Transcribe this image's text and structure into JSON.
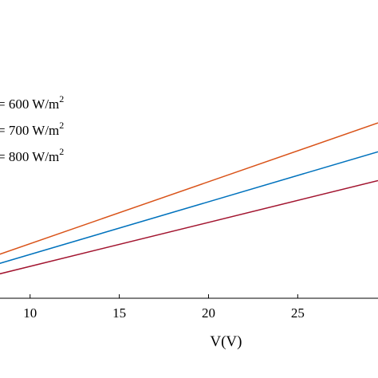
{
  "chart_data": {
    "type": "line",
    "xlabel": "V(V)",
    "ylabel": "",
    "xlim": [
      8.0,
      29.5
    ],
    "ylim": [
      0.0,
      6.0
    ],
    "x_ticks": [
      10,
      15,
      20,
      25
    ],
    "grid": false,
    "legend": {
      "placement": "top-left",
      "entries": [
        {
          "text": "= 600 W/m",
          "sup": "2"
        },
        {
          "text": "= 700 W/m",
          "sup": "2"
        },
        {
          "text": "= 800 W/m",
          "sup": "2"
        }
      ]
    },
    "series": [
      {
        "color": "#d95319",
        "x": [
          8.0,
          29.5
        ],
        "y": [
          0.95,
          3.95
        ]
      },
      {
        "color": "#0072bd",
        "x": [
          8.0,
          29.5
        ],
        "y": [
          0.75,
          3.3
        ]
      },
      {
        "color": "#a2142f",
        "x": [
          8.0,
          29.5
        ],
        "y": [
          0.52,
          2.65
        ]
      }
    ]
  }
}
